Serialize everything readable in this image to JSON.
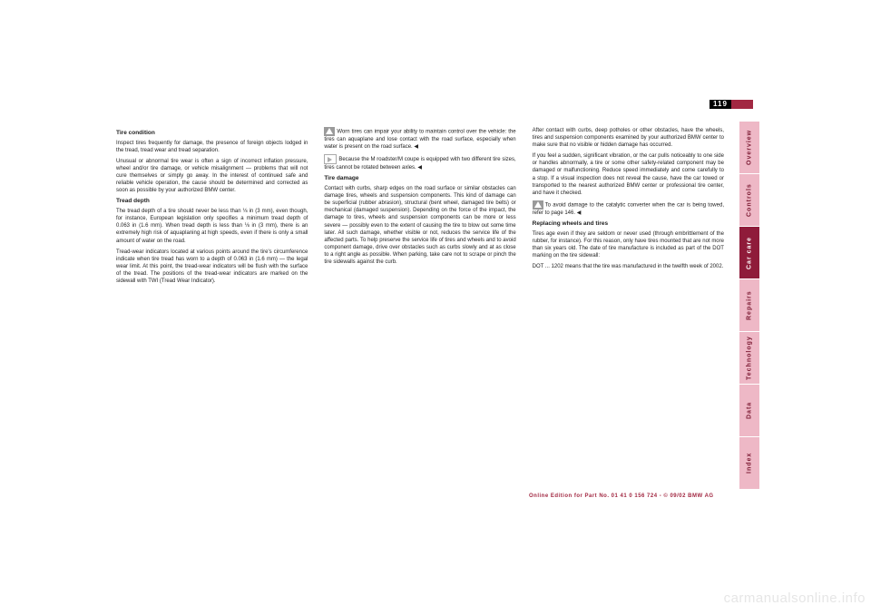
{
  "page_number": "119",
  "tabs": [
    {
      "label": "Overview",
      "active": false
    },
    {
      "label": "Controls",
      "active": false
    },
    {
      "label": "Car care",
      "active": true
    },
    {
      "label": "Repairs",
      "active": false
    },
    {
      "label": "Technology",
      "active": false
    },
    {
      "label": "Data",
      "active": false
    },
    {
      "label": "Index",
      "active": false
    }
  ],
  "colors": {
    "tab_bg": "#eeb8c6",
    "tab_active_bg": "#8f1b3a",
    "tab_text": "#7c1a33",
    "tab_active_text": "#ffffff",
    "accent": "#a22842"
  },
  "col1": {
    "h1": "Tire condition",
    "p1": "Inspect tires frequently for damage, the presence of foreign objects lodged in the tread, tread wear and tread separation.",
    "p2": "Unusual or abnormal tire wear is often a sign of incorrect inflation pressure, wheel and/or tire damage, or vehicle misalignment — problems that will not cure themselves or simply go away. In the interest of continued safe and reliable vehicle operation, the cause should be determined and corrected as soon as possible by your authorized BMW center.",
    "h2": "Tread depth",
    "p3": "The tread depth of a tire should never be less than ⅛ in (3 mm), even though, for instance, European legislation only specifies a minimum tread depth of 0.063 in (1.6 mm). When tread depth is less than ⅛ in (3 mm), there is an extremely high risk of aquaplaning at high speeds, even if there is only a small amount of water on the road.",
    "p4": "Tread-wear indicators located at various points around the tire's circumference indicate when tire tread has worn to a depth of 0.063 in (1.6 mm) — the legal wear limit. At this point, the tread-wear indicators will be flush with the surface of the tread. The positions of the tread-wear indicators are marked on the sidewall with TWI (Tread Wear Indicator)."
  },
  "col2": {
    "warn1": "Worn tires can impair your ability to maintain control over the vehicle: the tires can aquaplane and lose contact with the road surface, especially when water is present on the road surface. ◀",
    "note1": "Because the M roadster/M coupe is equipped with two different tire sizes, tires cannot be rotated between axles. ◀",
    "h1": "Tire damage",
    "p1": "Contact with curbs, sharp edges on the road surface or similar obstacles can damage tires, wheels and suspension components. This kind of damage can be superficial (rubber abrasion), structural (bent wheel, damaged tire belts) or mechanical (damaged suspension). Depending on the force of the impact, the damage to tires, wheels and suspension components can be more or less severe — possibly even to the extent of causing the tire to blow out some time later. All such damage, whether visible or not, reduces the service life of the affected parts. To help preserve the service life of tires and wheels and to avoid component damage, drive over obstacles such as curbs slowly and at as close to a right angle as possible. When parking, take care not to scrape or pinch the tire sidewalls against the curb."
  },
  "col3": {
    "p1": "After contact with curbs, deep potholes or other obstacles, have the wheels, tires and suspension components examined by your authorized BMW center to make sure that no visible or hidden damage has occurred.",
    "p2": "If you feel a sudden, significant vibration, or the car pulls noticeably to one side or handles abnormally, a tire or some other safety-related component may be damaged or malfunctioning. Reduce speed immediately and come carefully to a stop. If a visual inspection does not reveal the cause, have the car towed or transported to the nearest authorized BMW center or professional tire center, and have it checked.",
    "warn1": "To avoid damage to the catalytic converter when the car is being towed, refer to page 146. ◀",
    "h1": "Replacing wheels and tires",
    "p2b": "Tires age even if they are seldom or never used (through embrittlement of the rubber, for instance). For this reason, only have tires mounted that are not more than six years old. The date of tire manufacture is included as part of the DOT marking on the tire sidewall:",
    "p3": "DOT ... 1202 means that the tire was manufactured in the twelfth week of 2002."
  },
  "footer": "Online Edition for Part No. 01 41 0 156 724 - © 09/02 BMW AG",
  "watermark": "carmanualsonline.info"
}
